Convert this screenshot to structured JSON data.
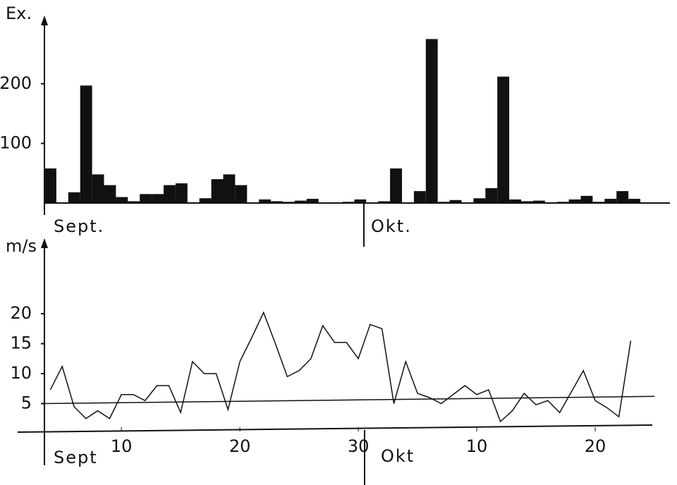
{
  "chart_data": [
    {
      "type": "bar",
      "y_label": "Ex.",
      "values": [
        58,
        0,
        18,
        197,
        48,
        30,
        10,
        3,
        15,
        15,
        30,
        33,
        0,
        8,
        40,
        48,
        30,
        0,
        6,
        3,
        2,
        4,
        7,
        0,
        0,
        2,
        6,
        0,
        3,
        58,
        0,
        20,
        275,
        2,
        5,
        0,
        8,
        25,
        212,
        6,
        3,
        4,
        0,
        2,
        6,
        12,
        2,
        7,
        20,
        7
      ],
      "color": "#111111",
      "ylim": [
        0,
        305
      ],
      "yticks": [
        100,
        200
      ],
      "annotations": [
        "Sept.",
        "Okt."
      ]
    },
    {
      "type": "line",
      "y_label": "m/s",
      "x": [
        4,
        5,
        6,
        7,
        8,
        9,
        10,
        11,
        12,
        13,
        14,
        15,
        16,
        17,
        18,
        19,
        20,
        21,
        22,
        23,
        24,
        25,
        26,
        27,
        28,
        29,
        30,
        31,
        32,
        33,
        34,
        35,
        36,
        37,
        38,
        39,
        40,
        41,
        42,
        43,
        44,
        45,
        46,
        47,
        48,
        49,
        50,
        51,
        52,
        53
      ],
      "values": [
        7.3,
        11.2,
        4.5,
        2.5,
        3.8,
        2.5,
        6.5,
        6.5,
        5.5,
        8,
        8,
        3.5,
        12,
        10,
        10,
        4,
        12,
        16,
        20.2,
        15,
        9.5,
        10.5,
        12.5,
        18,
        15.2,
        15.2,
        12.5,
        18.2,
        17.5,
        5,
        12,
        6.7,
        6,
        5,
        6.5,
        8,
        6.5,
        7.3,
        2,
        3.8,
        6.7,
        4.8,
        5.5,
        3.5,
        7,
        10.5,
        5.5,
        4.3,
        2.8,
        15.5
      ],
      "color": "#111111",
      "trend_line": {
        "x": [
          3.5,
          55
        ],
        "values": [
          5,
          6.2
        ]
      },
      "xlim": [
        3.5,
        55
      ],
      "xticks": [
        10,
        20,
        30,
        {
          "value": 40,
          "label": "10"
        },
        {
          "value": 50,
          "label": "20"
        }
      ],
      "ylim": [
        0,
        32
      ],
      "yticks": [
        5,
        10,
        15,
        20
      ],
      "annotations": [
        "Sept",
        "Okt"
      ]
    }
  ]
}
